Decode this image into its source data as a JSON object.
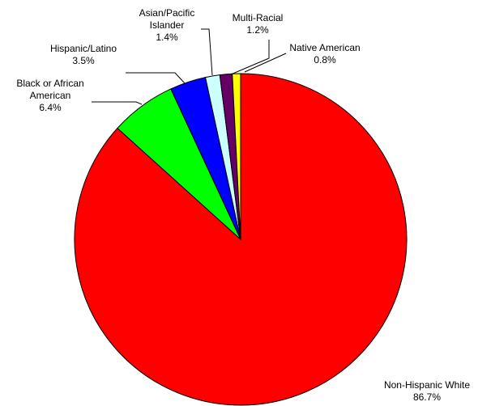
{
  "chart_data": {
    "type": "pie",
    "start_angle_deg": 0,
    "direction": "clockwise",
    "slices": [
      {
        "label_lines": [
          "Non-Hispanic White"
        ],
        "value": 86.7,
        "value_label": "86.7%",
        "color": "#ff0000"
      },
      {
        "label_lines": [
          "Black or African",
          "American"
        ],
        "value": 6.4,
        "value_label": "6.4%",
        "color": "#00ff00"
      },
      {
        "label_lines": [
          "Hispanic/Latino"
        ],
        "value": 3.5,
        "value_label": "3.5%",
        "color": "#0000ff"
      },
      {
        "label_lines": [
          "Asian/Pacific",
          "Islander"
        ],
        "value": 1.4,
        "value_label": "1.4%",
        "color": "#ccffff"
      },
      {
        "label_lines": [
          "Multi-Racial"
        ],
        "value": 1.2,
        "value_label": "1.2%",
        "color": "#660066"
      },
      {
        "label_lines": [
          "Native American"
        ],
        "value": 0.8,
        "value_label": "0.8%",
        "color": "#ffff00"
      }
    ],
    "border_color": "#000000",
    "leader_line_color": "#000000"
  }
}
